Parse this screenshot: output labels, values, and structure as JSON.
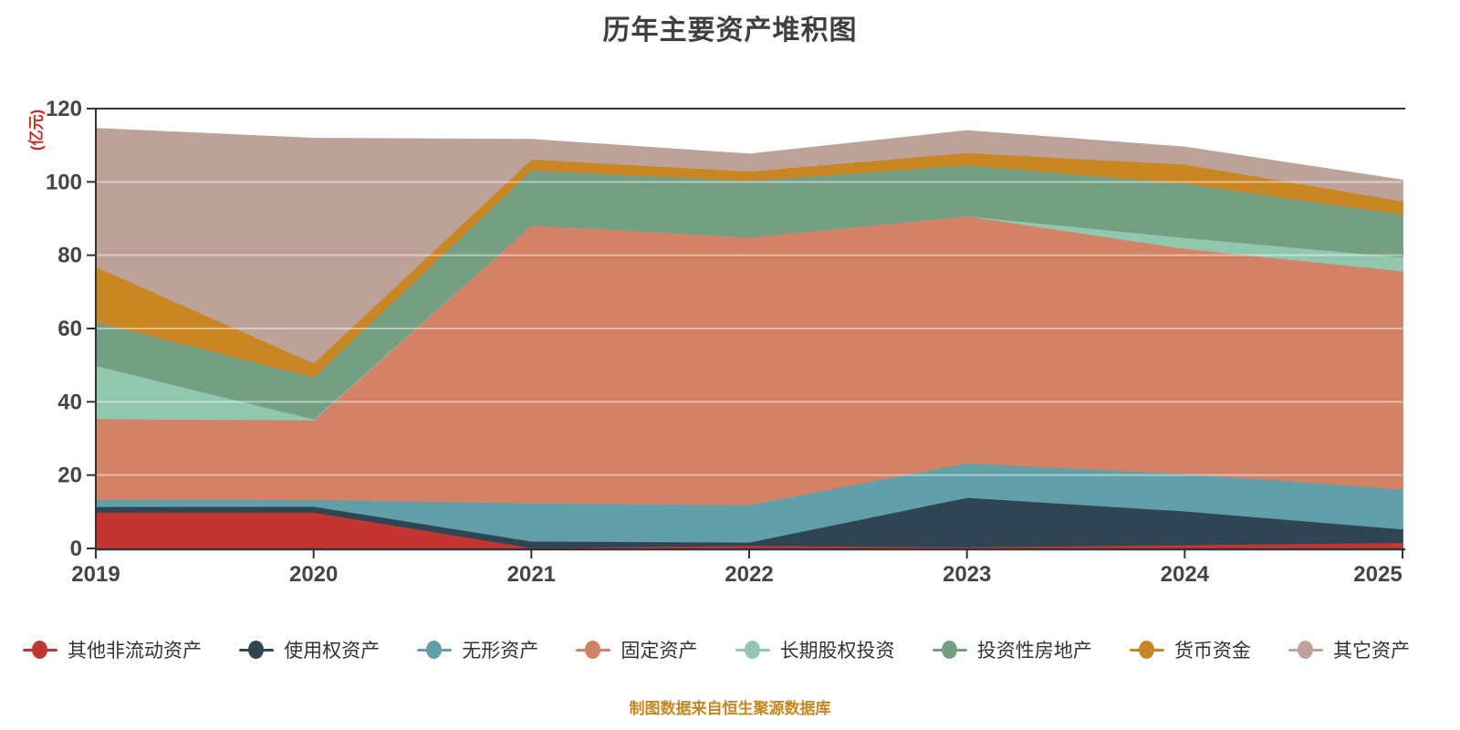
{
  "title": "历年主要资产堆积图",
  "y_axis_name": "(亿元)",
  "footer": "制图数据来自恒生聚源数据库",
  "axis_color": "#333333",
  "label_color": "#454545",
  "chart_data": {
    "type": "area",
    "stacked": true,
    "title": "历年主要资产堆积图",
    "ylabel": "(亿元)",
    "ylim": [
      0,
      120
    ],
    "y_ticks": [
      0,
      20,
      40,
      60,
      80,
      100,
      120
    ],
    "grid": true,
    "legend_position": "bottom",
    "x": [
      "2019",
      "2020",
      "2021",
      "2022",
      "2023",
      "2024",
      "2025"
    ],
    "series": [
      {
        "name": "其他非流动资产",
        "color": "#c23531",
        "values": [
          10.0,
          10.0,
          0.3,
          0.9,
          0.5,
          1.1,
          1.7
        ]
      },
      {
        "name": "使用权资产",
        "color": "#2f4554",
        "values": [
          1.5,
          1.6,
          1.8,
          0.9,
          13.5,
          9.2,
          3.7
        ]
      },
      {
        "name": "无形资产",
        "color": "#61a0a8",
        "values": [
          2.0,
          1.8,
          10.4,
          10.2,
          9.4,
          10.2,
          10.9
        ]
      },
      {
        "name": "固定资产",
        "color": "#d48265",
        "values": [
          22.0,
          21.7,
          75.8,
          73.0,
          67.4,
          61.4,
          59.5
        ]
      },
      {
        "name": "长期股权投资",
        "color": "#91c7ae",
        "values": [
          14.5,
          0.3,
          0.0,
          0.0,
          0.0,
          3.0,
          3.8
        ]
      },
      {
        "name": "投资性房地产",
        "color": "#749f83",
        "values": [
          12.0,
          11.5,
          15.0,
          15.5,
          13.9,
          14.8,
          11.7
        ]
      },
      {
        "name": "货币资金",
        "color": "#ca8622",
        "values": [
          15.0,
          3.8,
          3.0,
          2.5,
          3.4,
          5.2,
          3.6
        ]
      },
      {
        "name": "其它资产",
        "color": "#bda29a",
        "values": [
          37.5,
          61.1,
          5.2,
          4.5,
          5.8,
          4.5,
          5.5
        ]
      }
    ],
    "totals": [
      114.5,
      111.8,
      111.5,
      107.5,
      113.9,
      109.4,
      100.4
    ]
  }
}
